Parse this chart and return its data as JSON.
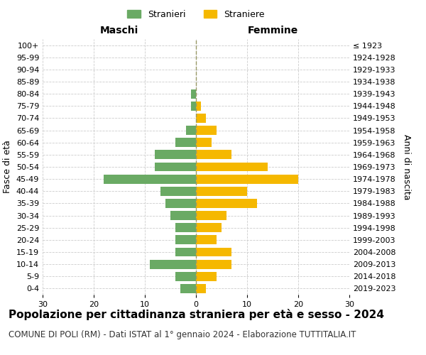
{
  "age_groups": [
    "0-4",
    "5-9",
    "10-14",
    "15-19",
    "20-24",
    "25-29",
    "30-34",
    "35-39",
    "40-44",
    "45-49",
    "50-54",
    "55-59",
    "60-64",
    "65-69",
    "70-74",
    "75-79",
    "80-84",
    "85-89",
    "90-94",
    "95-99",
    "100+"
  ],
  "birth_years": [
    "2019-2023",
    "2014-2018",
    "2009-2013",
    "2004-2008",
    "1999-2003",
    "1994-1998",
    "1989-1993",
    "1984-1988",
    "1979-1983",
    "1974-1978",
    "1969-1973",
    "1964-1968",
    "1959-1963",
    "1954-1958",
    "1949-1953",
    "1944-1948",
    "1939-1943",
    "1934-1938",
    "1929-1933",
    "1924-1928",
    "≤ 1923"
  ],
  "males": [
    3,
    4,
    9,
    4,
    4,
    4,
    5,
    6,
    7,
    18,
    8,
    8,
    4,
    2,
    0,
    1,
    1,
    0,
    0,
    0,
    0
  ],
  "females": [
    2,
    4,
    7,
    7,
    4,
    5,
    6,
    12,
    10,
    20,
    14,
    7,
    3,
    4,
    2,
    1,
    0,
    0,
    0,
    0,
    0
  ],
  "male_color": "#6aaa64",
  "female_color": "#f5b800",
  "background_color": "#ffffff",
  "grid_color": "#cccccc",
  "centerline_color": "#999966",
  "xlim": 30,
  "title": "Popolazione per cittadinanza straniera per età e sesso - 2024",
  "subtitle": "COMUNE DI POLI (RM) - Dati ISTAT al 1° gennaio 2024 - Elaborazione TUTTITALIA.IT",
  "xlabel_left": "Maschi",
  "xlabel_right": "Femmine",
  "ylabel_left": "Fasce di età",
  "ylabel_right": "Anni di nascita",
  "legend_male": "Stranieri",
  "legend_female": "Straniere",
  "title_fontsize": 11,
  "subtitle_fontsize": 8.5,
  "axis_label_fontsize": 9,
  "tick_fontsize": 8,
  "legend_fontsize": 9
}
